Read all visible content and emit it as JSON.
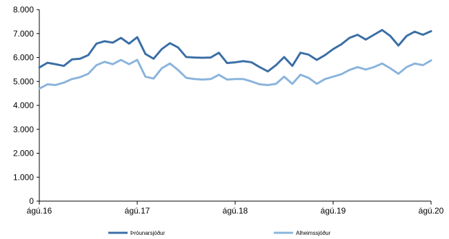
{
  "chart_data": {
    "type": "line",
    "x_tick_labels": [
      "ágú.16",
      "ágú.17",
      "ágú.18",
      "ágú.19",
      "ágú.20"
    ],
    "x_tick_positions": [
      0,
      12,
      24,
      36,
      48
    ],
    "y_tick_labels": [
      "0",
      "1.000",
      "2.000",
      "3.000",
      "4.000",
      "5.000",
      "6.000",
      "7.000",
      "8.000"
    ],
    "ylim": [
      0,
      8000
    ],
    "y_step": 1000,
    "grid": false,
    "legend_position": "bottom",
    "series": [
      {
        "name": "Þróunarsjóður",
        "color": "#3a6ea5",
        "values": [
          5580,
          5780,
          5720,
          5650,
          5920,
          5950,
          6100,
          6580,
          6680,
          6620,
          6820,
          6580,
          6850,
          6150,
          5950,
          6350,
          6600,
          6420,
          6020,
          6000,
          5990,
          6000,
          6200,
          5770,
          5800,
          5850,
          5800,
          5600,
          5420,
          5680,
          6020,
          5650,
          6200,
          6120,
          5900,
          6100,
          6350,
          6550,
          6820,
          6950,
          6750,
          6950,
          7150,
          6900,
          6500,
          6900,
          7080,
          6950,
          7100
        ]
      },
      {
        "name": "Alheimssjóður",
        "color": "#8ab4dc",
        "values": [
          4700,
          4880,
          4850,
          4950,
          5100,
          5180,
          5320,
          5680,
          5820,
          5720,
          5900,
          5720,
          5900,
          5200,
          5120,
          5550,
          5750,
          5480,
          5150,
          5100,
          5080,
          5100,
          5280,
          5080,
          5100,
          5100,
          5000,
          4880,
          4850,
          4900,
          5200,
          4900,
          5280,
          5150,
          4900,
          5100,
          5200,
          5300,
          5480,
          5600,
          5500,
          5600,
          5750,
          5550,
          5320,
          5600,
          5750,
          5680,
          5880
        ]
      }
    ]
  }
}
